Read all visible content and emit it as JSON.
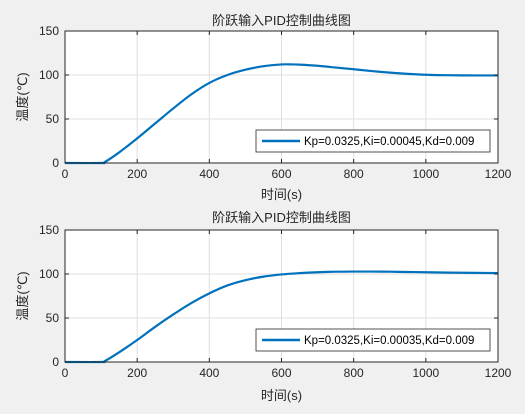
{
  "chart_data": [
    {
      "type": "line",
      "title": "阶跃输入PID控制曲线图",
      "xlabel": "时间(s)",
      "ylabel": "温度(℃)",
      "xlim": [
        0,
        1200
      ],
      "ylim": [
        0,
        150
      ],
      "xticks": [
        "0",
        "200",
        "400",
        "600",
        "800",
        "1000",
        "1200"
      ],
      "yticks": [
        "0",
        "50",
        "100",
        "150"
      ],
      "grid": true,
      "legend_position": "bottom-right",
      "series": [
        {
          "name": "Kp=0.0325,Ki=0.00045,Kd=0.009",
          "color": "#0072bd",
          "x": [
            0,
            100,
            110,
            150,
            200,
            250,
            300,
            350,
            400,
            450,
            500,
            550,
            600,
            630,
            650,
            700,
            750,
            800,
            850,
            900,
            950,
            1000,
            1050,
            1100,
            1150,
            1200
          ],
          "y": [
            0,
            0,
            1,
            12,
            28,
            45,
            62,
            78,
            91,
            100,
            106,
            110,
            112,
            112,
            111.8,
            110.5,
            108.5,
            106.5,
            104.5,
            102.7,
            101.3,
            100.3,
            99.8,
            99.6,
            99.5,
            99.5
          ]
        }
      ]
    },
    {
      "type": "line",
      "title": "阶跃输入PID控制曲线图",
      "xlabel": "时间(s)",
      "ylabel": "温度(℃)",
      "xlim": [
        0,
        1200
      ],
      "ylim": [
        0,
        150
      ],
      "xticks": [
        "0",
        "200",
        "400",
        "600",
        "800",
        "1000",
        "1200"
      ],
      "yticks": [
        "0",
        "50",
        "100",
        "150"
      ],
      "grid": true,
      "legend_position": "bottom-right",
      "series": [
        {
          "name": "Kp=0.0325,Ki=0.00035,Kd=0.009",
          "color": "#0072bd",
          "x": [
            0,
            100,
            110,
            150,
            200,
            250,
            300,
            350,
            400,
            450,
            500,
            550,
            600,
            650,
            700,
            750,
            800,
            850,
            900,
            950,
            1000,
            1100,
            1200
          ],
          "y": [
            0,
            0,
            1,
            11,
            25,
            40,
            54,
            67,
            78,
            87,
            93,
            97,
            99.5,
            101,
            102,
            102.6,
            102.8,
            102.8,
            102.6,
            102.3,
            102,
            101.4,
            101
          ]
        }
      ]
    }
  ]
}
